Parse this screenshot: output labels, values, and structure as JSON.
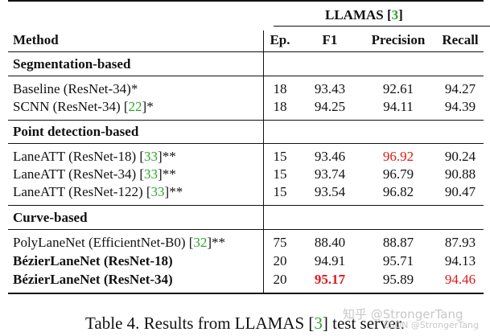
{
  "table": {
    "group_header": "LLAMAS",
    "group_header_ref": "3",
    "columns": {
      "method": "Method",
      "ep": "Ep.",
      "f1": "F1",
      "precision": "Precision",
      "recall": "Recall"
    },
    "sections": [
      {
        "title": "Segmentation-based",
        "rows": [
          {
            "method": "Baseline (ResNet-34)*",
            "ref": "",
            "suffix": "",
            "ep": "18",
            "f1": "93.43",
            "precision": "92.61",
            "recall": "94.27"
          },
          {
            "method": "SCNN (ResNet-34) [",
            "ref": "22",
            "suffix": "]*",
            "ep": "18",
            "f1": "94.25",
            "precision": "94.11",
            "recall": "94.39"
          }
        ]
      },
      {
        "title": "Point detection-based",
        "rows": [
          {
            "method": "LaneATT (ResNet-18) [",
            "ref": "33",
            "suffix": "]**",
            "ep": "15",
            "f1": "93.46",
            "precision": "96.92",
            "recall": "90.24"
          },
          {
            "method": "LaneATT (ResNet-34) [",
            "ref": "33",
            "suffix": "]**",
            "ep": "15",
            "f1": "93.74",
            "precision": "96.79",
            "recall": "90.88"
          },
          {
            "method": "LaneATT (ResNet-122) [",
            "ref": "33",
            "suffix": "]**",
            "ep": "15",
            "f1": "93.54",
            "precision": "96.82",
            "recall": "90.47"
          }
        ]
      },
      {
        "title": "Curve-based",
        "rows": [
          {
            "method": "PolyLaneNet (EfficientNet-B0) [",
            "ref": "32",
            "suffix": "]**",
            "ep": "75",
            "f1": "88.40",
            "precision": "88.87",
            "recall": "87.93"
          },
          {
            "method": "BézierLaneNet (ResNet-18)",
            "ref": "",
            "suffix": "",
            "ep": "20",
            "f1": "94.91",
            "precision": "95.71",
            "recall": "94.13"
          },
          {
            "method": "BézierLaneNet (ResNet-34)",
            "ref": "",
            "suffix": "",
            "ep": "20",
            "f1": "95.17",
            "precision": "95.89",
            "recall": "94.46"
          }
        ]
      }
    ]
  },
  "caption": {
    "text": "Table 4. Results from LLAMAS [",
    "ref": "3",
    "suffix": "] test server."
  },
  "watermark": {
    "main": "知乎 @StrongerTang",
    "sub": "CSDN @StrongerTang"
  },
  "colors": {
    "highlight": "#e01818",
    "reference": "#2aa52a"
  }
}
